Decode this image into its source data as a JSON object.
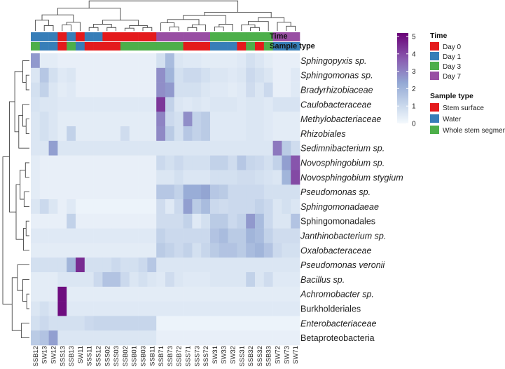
{
  "chart_data": {
    "type": "heatmap",
    "title": "",
    "columns": [
      "SSB12",
      "SW13",
      "SW12",
      "SSS13",
      "SSB13",
      "SW11",
      "SSS11",
      "SSS12",
      "SSS02",
      "SSS03",
      "SSB02",
      "SSB01",
      "SSB03",
      "SSB11",
      "SSB71",
      "SSB73",
      "SSB72",
      "SSS71",
      "SSS73",
      "SSS72",
      "SW31",
      "SW33",
      "SW32",
      "SSS31",
      "SSB32",
      "SSS32",
      "SSB33",
      "SW72",
      "SW73",
      "SW71"
    ],
    "rows": [
      {
        "label": "Sphingopyxis sp.",
        "italic": true
      },
      {
        "label": "Sphingomonas sp.",
        "italic": true
      },
      {
        "label": "Bradyrhizobiaceae",
        "italic": true
      },
      {
        "label": "Caulobacteraceae",
        "italic": true
      },
      {
        "label": "Methylobacteriaceae",
        "italic": true
      },
      {
        "label": "Rhizobiales",
        "italic": true
      },
      {
        "label": "Sedimnibacterium sp.",
        "italic": true
      },
      {
        "label": "Novosphingobium sp.",
        "italic": true
      },
      {
        "label": "Novosphingobium stygium",
        "italic": true
      },
      {
        "label": "Pseudomonas sp.",
        "italic": true
      },
      {
        "label": "Sphingomonadaeae",
        "italic": true
      },
      {
        "label": "Sphingomonadales",
        "italic": false
      },
      {
        "label": "Janthinobacterium sp.",
        "italic": true
      },
      {
        "label": "Oxalobacteraceae",
        "italic": true
      },
      {
        "label": "Pseudomonas veronii",
        "italic": true
      },
      {
        "label": "Bacillus sp.",
        "italic": true
      },
      {
        "label": "Achromobacter sp.",
        "italic": true
      },
      {
        "label": "Burkholderiales",
        "italic": false
      },
      {
        "label": "Enterobacteriaceae",
        "italic": true
      },
      {
        "label": "Betaproteobacteria",
        "italic": false
      }
    ],
    "values": [
      [
        2.6,
        0.4,
        0.4,
        0.3,
        0.3,
        0.3,
        0.3,
        0.3,
        0.3,
        0.3,
        0.3,
        0.3,
        0.3,
        0.3,
        0.8,
        1.8,
        0.6,
        0.5,
        0.5,
        0.4,
        0.4,
        0.4,
        0.4,
        0.5,
        0.8,
        0.6,
        0.4,
        0.3,
        0.3,
        0.3
      ],
      [
        0.6,
        1.5,
        0.8,
        0.5,
        0.6,
        0.3,
        0.3,
        0.3,
        0.3,
        0.3,
        0.3,
        0.3,
        0.3,
        0.3,
        2.8,
        2.0,
        0.8,
        1.0,
        1.0,
        0.8,
        0.6,
        0.6,
        0.5,
        0.6,
        1.0,
        0.8,
        0.6,
        0.3,
        0.3,
        0.5
      ],
      [
        0.8,
        1.2,
        0.6,
        0.4,
        0.5,
        0.3,
        0.3,
        0.3,
        0.3,
        0.3,
        0.3,
        0.3,
        0.3,
        0.3,
        2.8,
        2.6,
        0.8,
        0.8,
        0.8,
        0.6,
        0.5,
        0.5,
        0.4,
        0.5,
        0.9,
        0.6,
        1.0,
        0.3,
        0.3,
        0.5
      ],
      [
        0.7,
        0.6,
        0.6,
        0.5,
        0.5,
        0.5,
        0.5,
        0.5,
        0.5,
        0.5,
        0.5,
        0.5,
        0.5,
        0.5,
        4.3,
        1.2,
        0.6,
        0.5,
        0.6,
        0.5,
        0.6,
        0.6,
        0.6,
        0.5,
        0.6,
        0.6,
        0.5,
        0.7,
        0.7,
        0.7
      ],
      [
        0.6,
        0.8,
        0.6,
        0.4,
        0.4,
        0.4,
        0.4,
        0.4,
        0.4,
        0.4,
        0.4,
        0.4,
        0.4,
        0.4,
        3.0,
        1.0,
        0.8,
        2.8,
        1.2,
        1.4,
        0.5,
        0.5,
        0.5,
        0.5,
        0.6,
        0.6,
        0.5,
        0.4,
        0.4,
        0.4
      ],
      [
        0.6,
        0.8,
        0.6,
        0.4,
        1.2,
        0.4,
        0.4,
        0.4,
        0.4,
        0.4,
        0.9,
        0.4,
        0.4,
        0.4,
        2.9,
        1.4,
        0.8,
        1.5,
        1.2,
        1.4,
        0.5,
        0.5,
        0.5,
        0.5,
        0.6,
        0.6,
        0.5,
        0.4,
        0.4,
        0.4
      ],
      [
        0.6,
        0.6,
        2.5,
        0.6,
        0.6,
        0.6,
        0.6,
        0.6,
        0.6,
        0.6,
        0.6,
        0.6,
        0.6,
        0.6,
        0.6,
        0.6,
        0.6,
        0.6,
        0.6,
        0.6,
        0.6,
        0.6,
        0.6,
        0.6,
        0.6,
        0.6,
        0.6,
        3.2,
        1.4,
        0.9
      ],
      [
        0.4,
        0.3,
        0.3,
        0.3,
        0.3,
        0.3,
        0.3,
        0.3,
        0.3,
        0.3,
        0.3,
        0.3,
        0.3,
        0.3,
        1.0,
        0.8,
        1.0,
        0.8,
        0.8,
        0.8,
        1.2,
        1.2,
        0.9,
        1.5,
        1.1,
        1.0,
        0.8,
        1.2,
        2.5,
        3.8
      ],
      [
        0.4,
        0.3,
        0.3,
        0.3,
        0.3,
        0.3,
        0.3,
        0.3,
        0.3,
        0.3,
        0.3,
        0.3,
        0.3,
        0.3,
        0.6,
        0.6,
        0.8,
        0.6,
        0.6,
        0.6,
        0.8,
        0.8,
        0.8,
        0.9,
        0.9,
        0.8,
        0.7,
        0.6,
        2.0,
        4.0
      ],
      [
        0.4,
        0.3,
        0.3,
        0.3,
        0.3,
        0.3,
        0.3,
        0.3,
        0.3,
        0.3,
        0.3,
        0.3,
        0.3,
        0.3,
        1.5,
        1.5,
        1.2,
        2.2,
        2.2,
        2.4,
        1.5,
        1.4,
        1.0,
        1.0,
        1.0,
        1.0,
        0.8,
        0.8,
        0.8,
        0.8
      ],
      [
        0.6,
        1.0,
        0.6,
        0.3,
        0.5,
        0.2,
        0.2,
        0.2,
        0.2,
        0.2,
        0.2,
        0.2,
        0.2,
        0.2,
        0.9,
        0.5,
        1.0,
        2.5,
        1.4,
        1.8,
        1.0,
        0.9,
        1.0,
        1.0,
        1.0,
        1.2,
        1.0,
        0.6,
        0.8,
        0.6
      ],
      [
        0.3,
        0.3,
        0.3,
        0.3,
        1.2,
        0.3,
        0.3,
        0.3,
        0.3,
        0.3,
        0.3,
        0.3,
        0.3,
        0.3,
        0.9,
        0.9,
        0.9,
        1.2,
        0.5,
        0.8,
        1.4,
        1.4,
        1.0,
        1.2,
        2.6,
        1.8,
        1.0,
        0.6,
        0.6,
        1.6
      ],
      [
        0.5,
        0.5,
        0.5,
        0.5,
        0.5,
        0.5,
        0.5,
        0.5,
        0.5,
        0.5,
        0.5,
        0.5,
        0.5,
        0.5,
        1.2,
        1.0,
        1.0,
        1.0,
        1.0,
        1.0,
        1.6,
        1.8,
        1.4,
        1.4,
        2.0,
        1.8,
        1.2,
        0.9,
        0.9,
        0.9
      ],
      [
        0.4,
        0.4,
        0.4,
        0.4,
        0.4,
        0.4,
        0.4,
        0.4,
        0.4,
        0.4,
        0.4,
        0.4,
        0.4,
        0.4,
        1.4,
        1.2,
        1.0,
        1.2,
        0.8,
        1.1,
        1.4,
        1.6,
        1.6,
        1.4,
        1.8,
        2.0,
        1.6,
        1.0,
        0.8,
        0.8
      ],
      [
        0.8,
        0.8,
        0.8,
        0.8,
        2.0,
        4.5,
        0.8,
        0.8,
        0.8,
        1.0,
        0.8,
        0.8,
        1.0,
        1.5,
        0.6,
        0.6,
        0.6,
        0.6,
        0.6,
        0.6,
        0.6,
        0.6,
        0.6,
        0.6,
        0.6,
        0.6,
        0.6,
        0.6,
        0.6,
        0.6
      ],
      [
        0.4,
        0.4,
        0.4,
        0.6,
        0.6,
        0.6,
        0.6,
        1.0,
        1.6,
        1.6,
        1.0,
        0.6,
        0.8,
        0.6,
        0.5,
        0.9,
        0.6,
        0.5,
        0.5,
        0.5,
        0.6,
        0.6,
        0.6,
        0.6,
        1.2,
        0.6,
        0.9,
        0.5,
        0.5,
        0.5
      ],
      [
        0.4,
        0.4,
        0.4,
        5.0,
        0.4,
        0.4,
        0.4,
        0.4,
        0.4,
        0.4,
        0.4,
        0.4,
        0.4,
        0.4,
        0.4,
        0.4,
        0.4,
        0.4,
        0.4,
        0.4,
        0.4,
        0.4,
        0.4,
        0.4,
        0.4,
        0.4,
        0.4,
        0.4,
        0.4,
        0.4
      ],
      [
        0.6,
        0.8,
        0.6,
        5.0,
        0.5,
        0.5,
        0.5,
        0.5,
        0.5,
        0.5,
        0.5,
        0.5,
        0.5,
        0.5,
        0.5,
        0.5,
        0.5,
        0.5,
        0.5,
        0.5,
        0.5,
        0.5,
        0.5,
        0.5,
        0.5,
        0.5,
        0.5,
        0.5,
        0.5,
        0.5
      ],
      [
        0.8,
        1.0,
        0.8,
        0.8,
        0.8,
        0.8,
        1.0,
        1.1,
        1.1,
        1.1,
        1.1,
        1.1,
        1.1,
        1.1,
        0.2,
        0.2,
        0.2,
        0.2,
        0.2,
        0.2,
        0.2,
        0.2,
        0.2,
        0.2,
        0.2,
        0.2,
        0.2,
        0.2,
        0.2,
        0.2
      ],
      [
        1.4,
        1.6,
        2.5,
        0.6,
        0.6,
        0.6,
        0.6,
        0.6,
        0.6,
        0.6,
        0.6,
        0.6,
        0.6,
        0.6,
        0.3,
        0.3,
        0.3,
        0.3,
        0.3,
        0.3,
        0.3,
        0.3,
        0.3,
        0.3,
        0.3,
        0.3,
        0.3,
        0.3,
        0.3,
        0.3
      ]
    ],
    "annotations": {
      "Time": [
        "Day 1",
        "Day 1",
        "Day 1",
        "Day 0",
        "Day 1",
        "Day 0",
        "Day 1",
        "Day 1",
        "Day 0",
        "Day 0",
        "Day 0",
        "Day 0",
        "Day 0",
        "Day 0",
        "Day 7",
        "Day 7",
        "Day 7",
        "Day 7",
        "Day 7",
        "Day 7",
        "Day 3",
        "Day 3",
        "Day 3",
        "Day 3",
        "Day 3",
        "Day 3",
        "Day 3",
        "Day 7",
        "Day 7",
        "Day 7"
      ],
      "Sample type": [
        "Whole stem segment",
        "Water",
        "Water",
        "Stem surface",
        "Whole stem segment",
        "Water",
        "Stem surface",
        "Stem surface",
        "Stem surface",
        "Stem surface",
        "Whole stem segment",
        "Whole stem segment",
        "Whole stem segment",
        "Whole stem segment",
        "Whole stem segment",
        "Whole stem segment",
        "Whole stem segment",
        "Stem surface",
        "Stem surface",
        "Stem surface",
        "Water",
        "Water",
        "Water",
        "Stem surface",
        "Whole stem segment",
        "Stem surface",
        "Whole stem segment",
        "Water",
        "Water",
        "Water"
      ]
    },
    "annotation_labels": [
      "Time",
      "Sample type"
    ],
    "legend": {
      "scale_ticks": [
        "5",
        "4",
        "3",
        "2",
        "1",
        "0"
      ],
      "scale_range": [
        0,
        5.2
      ],
      "groups": [
        {
          "title": "Time",
          "items": [
            {
              "label": "Day 0",
              "color": "#e41a1c"
            },
            {
              "label": "Day 1",
              "color": "#377eb8"
            },
            {
              "label": "Day 3",
              "color": "#4daf4a"
            },
            {
              "label": "Day 7",
              "color": "#984ea3"
            }
          ]
        },
        {
          "title": "Sample type",
          "items": [
            {
              "label": "Stem surface",
              "color": "#e41a1c"
            },
            {
              "label": "Water",
              "color": "#377eb8"
            },
            {
              "label": "Whole stem segment",
              "color": "#4daf4a"
            }
          ]
        }
      ]
    },
    "colorscale": [
      "#f4f9fd",
      "#6a0177"
    ]
  }
}
